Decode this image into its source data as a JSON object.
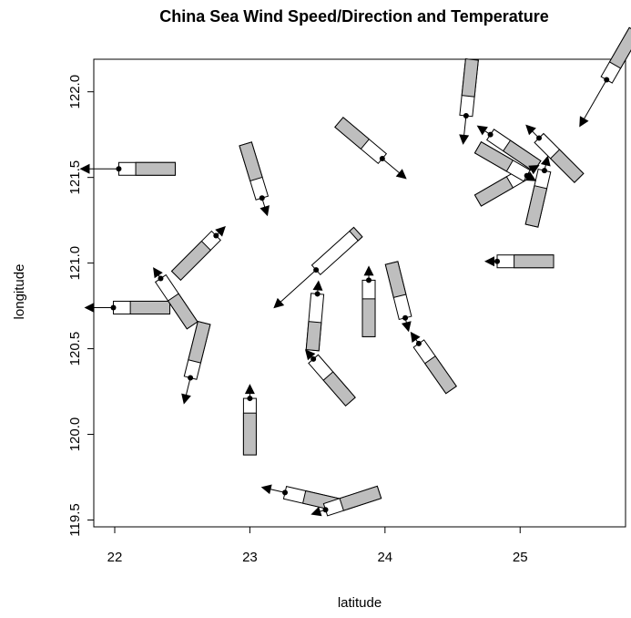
{
  "chart_data": {
    "type": "wind",
    "title": "China Sea Wind Speed/Direction and Temperature",
    "x_label": "latitude",
    "y_label": "longitude",
    "xlim": [
      21.845,
      25.78
    ],
    "ylim": [
      119.46,
      122.19
    ],
    "xticks": [
      22,
      23,
      24,
      25
    ],
    "yticks": [
      {
        "value": 119.5,
        "label": "119.5"
      },
      {
        "value": 120,
        "label": "120.0"
      },
      120.5,
      {
        "value": 121,
        "label": "121.0"
      },
      121.5,
      {
        "value": 122,
        "label": "122.0"
      }
    ],
    "x": [
      22.03,
      21.99,
      22.75,
      22.34,
      22.56,
      23.09,
      23.0,
      23.49,
      23.5,
      23.88,
      23.47,
      23.98,
      24.15,
      24.25,
      23.26,
      23.56,
      24.6,
      24.83,
      25.64,
      24.78,
      25.05,
      25.14,
      25.18,
      25.05
    ],
    "y": [
      121.55,
      120.74,
      121.16,
      120.91,
      120.33,
      121.38,
      120.21,
      120.96,
      120.82,
      120.9,
      120.44,
      121.61,
      120.68,
      120.53,
      119.66,
      119.56,
      121.86,
      121.01,
      122.07,
      121.75,
      121.53,
      121.73,
      121.54,
      121.51
    ],
    "direction": [
      180,
      180,
      45,
      124,
      256,
      287,
      90,
      222,
      85,
      90,
      131,
      320,
      284,
      125,
      167,
      198,
      264,
      180,
      240,
      146,
      30,
      135,
      77,
      330
    ],
    "speed": [
      39,
      28,
      11,
      11,
      26,
      17,
      12,
      59,
      11,
      12,
      10,
      31,
      12,
      12,
      23,
      13,
      28,
      10,
      56,
      14,
      12,
      17,
      13,
      8
    ],
    "temperature": [
      0.7,
      0.7,
      0.75,
      0.6,
      0.7,
      0.65,
      0.74,
      0.1,
      0.5,
      0.67,
      0.6,
      0.6,
      0.6,
      0.65,
      0.65,
      0.7,
      0.65,
      0.7,
      0.7,
      0.65,
      0.65,
      0.6,
      0.7,
      0.65
    ],
    "glyph_color": "#bebebe",
    "frame": true
  }
}
